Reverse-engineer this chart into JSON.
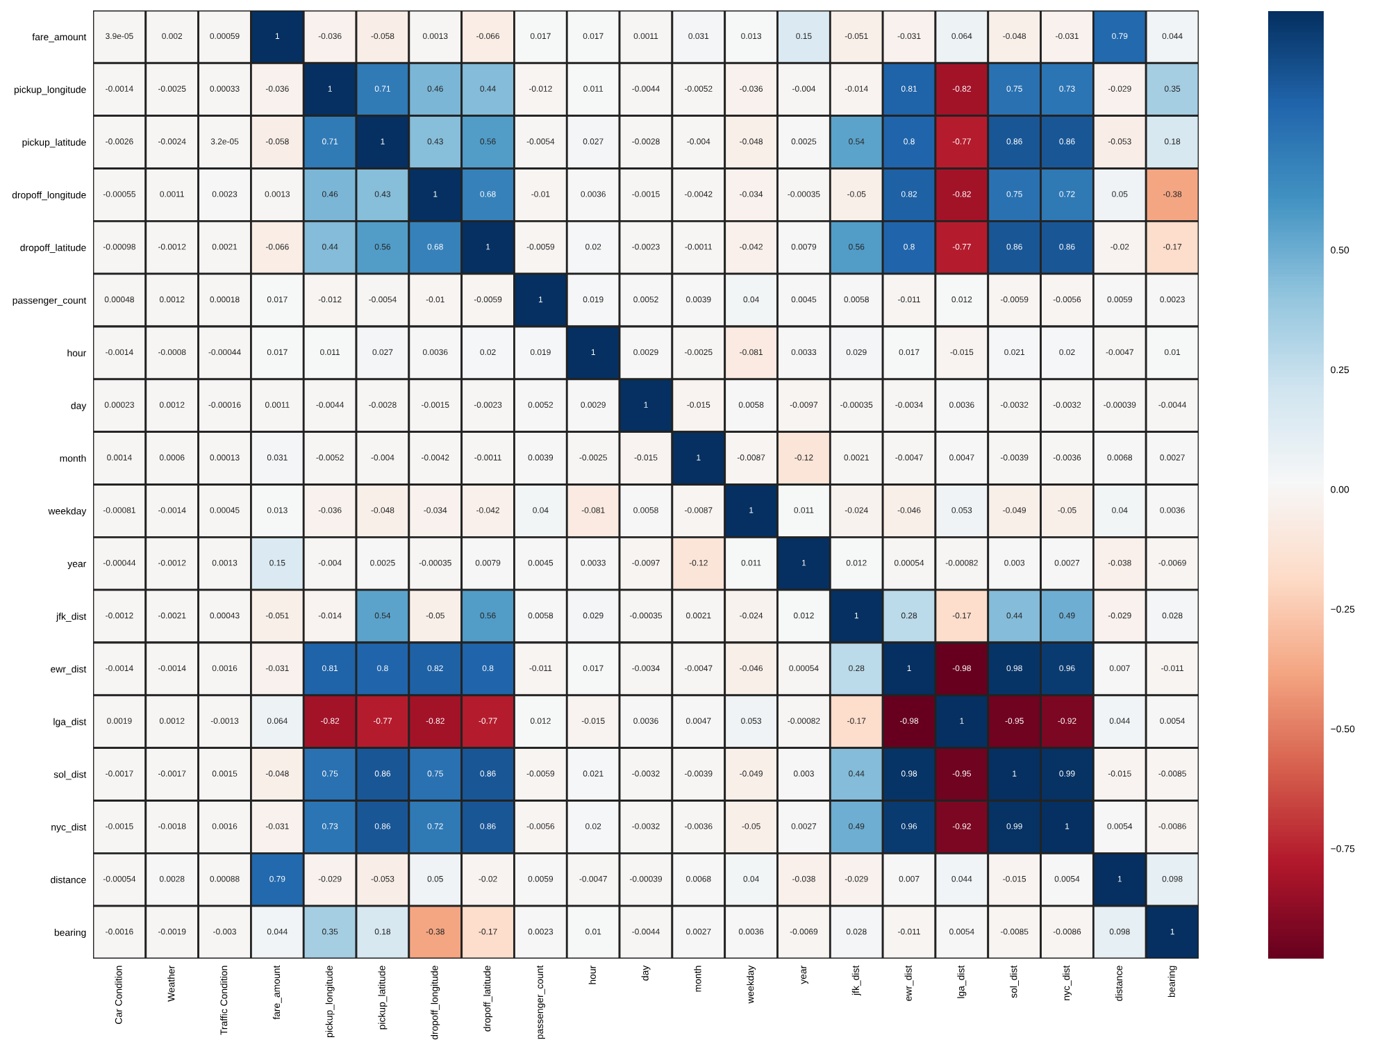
{
  "chart_data": {
    "type": "heatmap",
    "categories": [
      "Car Condition",
      "Weather",
      "Traffic Condition",
      "fare_amount",
      "pickup_longitude",
      "pickup_latitude",
      "dropoff_longitude",
      "dropoff_latitude",
      "passenger_count",
      "hour",
      "day",
      "month",
      "weekday",
      "year",
      "jfk_dist",
      "ewr_dist",
      "lga_dist",
      "sol_dist",
      "nyc_dist",
      "distance",
      "bearing"
    ],
    "y_categories": [
      "fare_amount",
      "pickup_longitude",
      "pickup_latitude",
      "dropoff_longitude",
      "dropoff_latitude",
      "passenger_count",
      "hour",
      "day",
      "month",
      "weekday",
      "year",
      "jfk_dist",
      "ewr_dist",
      "lga_dist",
      "sol_dist",
      "nyc_dist",
      "distance",
      "bearing"
    ],
    "cells": [
      [
        3.9e-05,
        0.002,
        0.00059,
        1,
        -0.036,
        -0.058,
        0.0013,
        -0.066,
        0.017,
        0.017,
        0.0011,
        0.031,
        0.013,
        0.15,
        -0.051,
        -0.031,
        0.064,
        -0.048,
        -0.031,
        0.79,
        0.044
      ],
      [
        -0.0014,
        -0.0025,
        0.00033,
        -0.036,
        1,
        0.71,
        0.46,
        0.44,
        -0.012,
        0.011,
        -0.0044,
        -0.0052,
        -0.036,
        -0.004,
        -0.014,
        0.81,
        -0.82,
        0.75,
        0.73,
        -0.029,
        0.35
      ],
      [
        -0.0026,
        -0.0024,
        3.2e-05,
        -0.058,
        0.71,
        1,
        0.43,
        0.56,
        -0.0054,
        0.027,
        -0.0028,
        -0.004,
        -0.048,
        0.0025,
        0.54,
        0.8,
        -0.77,
        0.86,
        0.86,
        -0.053,
        0.18
      ],
      [
        -0.00055,
        0.0011,
        0.0023,
        0.0013,
        0.46,
        0.43,
        1,
        0.68,
        -0.01,
        0.0036,
        -0.0015,
        -0.0042,
        -0.034,
        -0.00035,
        -0.05,
        0.82,
        -0.82,
        0.75,
        0.72,
        0.05,
        -0.38
      ],
      [
        -0.00098,
        -0.0012,
        0.0021,
        -0.066,
        0.44,
        0.56,
        0.68,
        1,
        -0.0059,
        0.02,
        -0.0023,
        -0.0011,
        -0.042,
        0.0079,
        0.56,
        0.8,
        -0.77,
        0.86,
        0.86,
        -0.02,
        -0.17
      ],
      [
        0.00048,
        0.0012,
        0.00018,
        0.017,
        -0.012,
        -0.0054,
        -0.01,
        -0.0059,
        1,
        0.019,
        0.0052,
        0.0039,
        0.04,
        0.0045,
        0.0058,
        -0.011,
        0.012,
        -0.0059,
        -0.0056,
        0.0059,
        0.0023
      ],
      [
        -0.0014,
        -0.0008,
        -0.00044,
        0.017,
        0.011,
        0.027,
        0.0036,
        0.02,
        0.019,
        1,
        0.0029,
        -0.0025,
        -0.081,
        0.0033,
        0.029,
        0.017,
        -0.015,
        0.021,
        0.02,
        -0.0047,
        0.01
      ],
      [
        0.00023,
        0.0012,
        -0.00016,
        0.0011,
        -0.0044,
        -0.0028,
        -0.0015,
        -0.0023,
        0.0052,
        0.0029,
        1,
        -0.015,
        0.0058,
        -0.0097,
        -0.00035,
        -0.0034,
        0.0036,
        -0.0032,
        -0.0032,
        -0.00039,
        -0.0044
      ],
      [
        0.0014,
        0.0006,
        0.00013,
        0.031,
        -0.0052,
        -0.004,
        -0.0042,
        -0.0011,
        0.0039,
        -0.0025,
        -0.015,
        1,
        -0.0087,
        -0.12,
        0.0021,
        -0.0047,
        0.0047,
        -0.0039,
        -0.0036,
        0.0068,
        0.0027
      ],
      [
        -0.00081,
        -0.0014,
        0.00045,
        0.013,
        -0.036,
        -0.048,
        -0.034,
        -0.042,
        0.04,
        -0.081,
        0.0058,
        -0.0087,
        1,
        0.011,
        -0.024,
        -0.046,
        0.053,
        -0.049,
        -0.05,
        0.04,
        0.0036
      ],
      [
        -0.00044,
        -0.0012,
        0.0013,
        0.15,
        -0.004,
        0.0025,
        -0.00035,
        0.0079,
        0.0045,
        0.0033,
        -0.0097,
        -0.12,
        0.011,
        1,
        0.012,
        0.00054,
        -0.00082,
        0.003,
        0.0027,
        -0.038,
        -0.0069
      ],
      [
        -0.0012,
        -0.0021,
        0.00043,
        -0.051,
        -0.014,
        0.54,
        -0.05,
        0.56,
        0.0058,
        0.029,
        -0.00035,
        0.0021,
        -0.024,
        0.012,
        1,
        0.28,
        -0.17,
        0.44,
        0.49,
        -0.029,
        0.028
      ],
      [
        -0.0014,
        -0.0014,
        0.0016,
        -0.031,
        0.81,
        0.8,
        0.82,
        0.8,
        -0.011,
        0.017,
        -0.0034,
        -0.0047,
        -0.046,
        0.00054,
        0.28,
        1,
        -0.98,
        0.98,
        0.96,
        0.007,
        -0.011
      ],
      [
        0.0019,
        0.0012,
        -0.0013,
        0.064,
        -0.82,
        -0.77,
        -0.82,
        -0.77,
        0.012,
        -0.015,
        0.0036,
        0.0047,
        0.053,
        -0.00082,
        -0.17,
        -0.98,
        1,
        -0.95,
        -0.92,
        0.044,
        0.0054
      ],
      [
        -0.0017,
        -0.0017,
        0.0015,
        -0.048,
        0.75,
        0.86,
        0.75,
        0.86,
        -0.0059,
        0.021,
        -0.0032,
        -0.0039,
        -0.049,
        0.003,
        0.44,
        0.98,
        -0.95,
        1,
        0.99,
        -0.015,
        -0.0085
      ],
      [
        -0.0015,
        -0.0018,
        0.0016,
        -0.031,
        0.73,
        0.86,
        0.72,
        0.86,
        -0.0056,
        0.02,
        -0.0032,
        -0.0036,
        -0.05,
        0.0027,
        0.49,
        0.96,
        -0.92,
        0.99,
        1,
        0.0054,
        -0.0086
      ],
      [
        -0.00054,
        0.0028,
        0.00088,
        0.79,
        -0.029,
        -0.053,
        0.05,
        -0.02,
        0.0059,
        -0.0047,
        -0.00039,
        0.0068,
        0.04,
        -0.038,
        -0.029,
        0.007,
        0.044,
        -0.015,
        0.0054,
        1,
        0.098
      ],
      [
        -0.0016,
        -0.0019,
        -0.003,
        0.044,
        0.35,
        0.18,
        -0.38,
        -0.17,
        0.0023,
        0.01,
        -0.0044,
        0.0027,
        0.0036,
        -0.0069,
        0.028,
        -0.011,
        0.0054,
        -0.0085,
        -0.0086,
        0.098,
        1
      ]
    ],
    "clim": [
      -0.98,
      1
    ],
    "cticks": [
      {
        "value": 0.5,
        "label": "0.50"
      },
      {
        "value": 0.25,
        "label": "0.25"
      },
      {
        "value": 0,
        "label": "0.00"
      },
      {
        "value": -0.25,
        "label": "−0.25"
      },
      {
        "value": -0.5,
        "label": "−0.50"
      },
      {
        "value": -0.75,
        "label": "−0.75"
      }
    ],
    "data_labels": true
  }
}
